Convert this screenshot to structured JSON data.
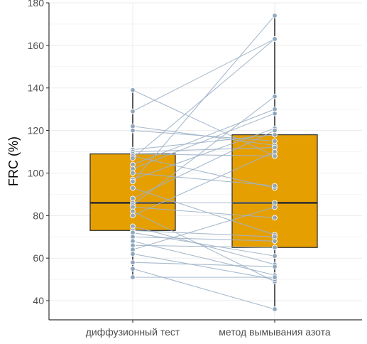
{
  "chart_data": {
    "type": "box",
    "title": "",
    "xlabel": "",
    "ylabel": "FRC (%)",
    "ylim": [
      31,
      180
    ],
    "yticks": [
      40,
      60,
      80,
      100,
      120,
      140,
      160,
      180
    ],
    "categories": [
      "диффузионный тест",
      "метод вымывания азота"
    ],
    "boxes": [
      {
        "category": "диффузионный тест",
        "q1": 73,
        "median": 86,
        "q3": 109,
        "whisker_low": 51,
        "whisker_high": 139
      },
      {
        "category": "метод вымывания азота",
        "q1": 65,
        "median": 86,
        "q3": 118,
        "whisker_low": 36,
        "whisker_high": 174
      }
    ],
    "paired": [
      [
        139,
        108
      ],
      [
        129,
        163
      ],
      [
        122,
        113
      ],
      [
        120,
        115
      ],
      [
        111,
        118
      ],
      [
        110,
        112
      ],
      [
        109,
        108
      ],
      [
        108,
        93
      ],
      [
        107,
        163
      ],
      [
        104,
        130
      ],
      [
        102,
        128
      ],
      [
        100,
        94
      ],
      [
        97,
        121
      ],
      [
        96,
        174
      ],
      [
        93,
        71
      ],
      [
        88,
        120
      ],
      [
        86,
        86
      ],
      [
        85,
        136
      ],
      [
        84,
        79
      ],
      [
        82,
        49
      ],
      [
        80,
        110
      ],
      [
        75,
        57
      ],
      [
        73,
        70
      ],
      [
        72,
        61
      ],
      [
        70,
        68
      ],
      [
        68,
        52
      ],
      [
        66,
        65
      ],
      [
        64,
        84
      ],
      [
        62,
        50
      ],
      [
        58,
        56
      ],
      [
        55,
        36
      ],
      [
        51,
        51
      ]
    ],
    "grid": true,
    "colors": {
      "box_fill": "#E69F00",
      "box_border": "#333333",
      "median": "#2b2b2b",
      "pair_line": "#9FB3C8",
      "point_fill": "#8FA6BD",
      "point_stroke": "#ffffff",
      "grid": "#ebebeb",
      "axis": "#333333"
    }
  }
}
